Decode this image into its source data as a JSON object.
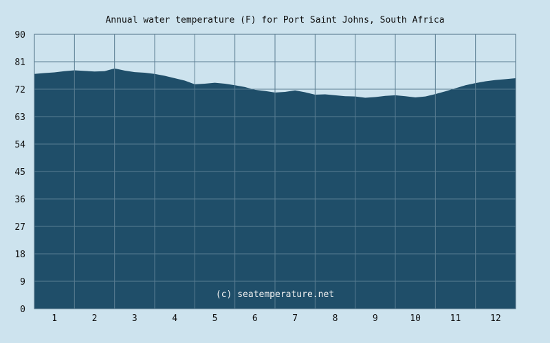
{
  "chart_data": {
    "type": "area",
    "title": "Annual water temperature (F) for Port Saint Johns, South Africa",
    "xlabel": "",
    "ylabel": "",
    "watermark": "(c) seatemperature.net",
    "ylim": [
      0,
      90
    ],
    "yticks": [
      0,
      9,
      18,
      27,
      36,
      45,
      54,
      63,
      72,
      81,
      90
    ],
    "categories": [
      "1",
      "2",
      "3",
      "4",
      "5",
      "6",
      "7",
      "8",
      "9",
      "10",
      "11",
      "12"
    ],
    "grid": true,
    "series": [
      {
        "values": [
          [
            0.5,
            77.0
          ],
          [
            0.75,
            77.3
          ],
          [
            1.0,
            77.5
          ],
          [
            1.25,
            77.9
          ],
          [
            1.5,
            78.2
          ],
          [
            1.75,
            78.0
          ],
          [
            2.0,
            77.8
          ],
          [
            2.25,
            77.9
          ],
          [
            2.5,
            78.8
          ],
          [
            2.75,
            78.1
          ],
          [
            3.0,
            77.6
          ],
          [
            3.25,
            77.4
          ],
          [
            3.5,
            77.0
          ],
          [
            3.75,
            76.4
          ],
          [
            4.0,
            75.6
          ],
          [
            4.25,
            74.8
          ],
          [
            4.5,
            73.6
          ],
          [
            4.75,
            73.8
          ],
          [
            5.0,
            74.1
          ],
          [
            5.25,
            73.8
          ],
          [
            5.5,
            73.3
          ],
          [
            5.75,
            72.7
          ],
          [
            6.0,
            71.8
          ],
          [
            6.25,
            71.4
          ],
          [
            6.5,
            70.9
          ],
          [
            6.75,
            71.1
          ],
          [
            7.0,
            71.6
          ],
          [
            7.25,
            71.0
          ],
          [
            7.5,
            70.2
          ],
          [
            7.75,
            70.3
          ],
          [
            8.0,
            70.0
          ],
          [
            8.25,
            69.7
          ],
          [
            8.5,
            69.6
          ],
          [
            8.75,
            69.2
          ],
          [
            9.0,
            69.4
          ],
          [
            9.25,
            69.8
          ],
          [
            9.5,
            70.0
          ],
          [
            9.75,
            69.7
          ],
          [
            10.0,
            69.3
          ],
          [
            10.25,
            69.6
          ],
          [
            10.5,
            70.4
          ],
          [
            10.75,
            71.3
          ],
          [
            11.0,
            72.3
          ],
          [
            11.25,
            73.3
          ],
          [
            11.5,
            74.0
          ],
          [
            11.75,
            74.6
          ],
          [
            12.0,
            75.0
          ],
          [
            12.25,
            75.3
          ],
          [
            12.5,
            75.6
          ]
        ]
      }
    ],
    "colors": {
      "background": "#cde3ee",
      "area": "#1f4e69",
      "grid": "#5a7d92",
      "axis": "#4d6f84"
    }
  }
}
